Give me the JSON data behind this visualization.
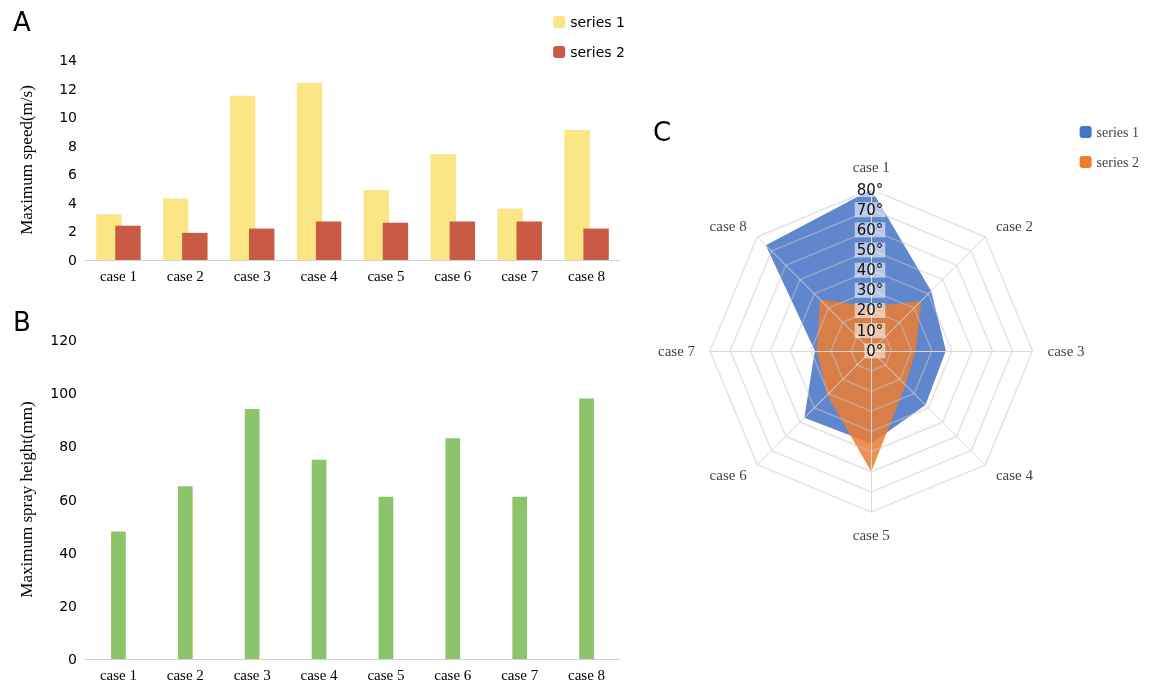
{
  "chart_data": [
    {
      "type": "bar",
      "title": "A",
      "ylabel": "Maximum speed(m/s)",
      "categories": [
        "case 1",
        "case 2",
        "case 3",
        "case 4",
        "case 5",
        "case 6",
        "case 7",
        "case 8"
      ],
      "series": [
        {
          "name": "series 1",
          "color": "#fbe685",
          "values": [
            3.2,
            4.3,
            11.5,
            12.4,
            4.9,
            7.4,
            3.6,
            9.1
          ]
        },
        {
          "name": "series 2",
          "color": "#c95a45",
          "values": [
            2.4,
            1.9,
            2.2,
            2.7,
            2.6,
            2.7,
            2.7,
            2.2
          ]
        }
      ],
      "ylim": [
        0,
        14
      ],
      "yticks": [
        0,
        2,
        4,
        6,
        8,
        10,
        12,
        14
      ],
      "grid": false,
      "legend": "top right"
    },
    {
      "type": "bar",
      "title": "B",
      "ylabel": "Maximum spray height(mm)",
      "categories": [
        "case 1",
        "case 2",
        "case 3",
        "case 4",
        "case 5",
        "case 6",
        "case 7",
        "case 8"
      ],
      "values": [
        48,
        65,
        94,
        75,
        61,
        83,
        61,
        98
      ],
      "color": "#8cc46c",
      "ylim": [
        0,
        120
      ],
      "yticks": [
        0,
        20,
        40,
        60,
        80,
        100,
        120
      ],
      "grid": false
    },
    {
      "type": "radar",
      "title": "C",
      "categories": [
        "case 1",
        "case 2",
        "case 3",
        "case 4",
        "case 5",
        "case 6",
        "case 7",
        "case 8"
      ],
      "series": [
        {
          "name": "series 1",
          "color": "#4472c4",
          "values": [
            80,
            42,
            37,
            38,
            46,
            47,
            28,
            74
          ]
        },
        {
          "name": "series 2",
          "color": "#ed7d31",
          "values": [
            22,
            35,
            22,
            24,
            60,
            31,
            27,
            36
          ]
        }
      ],
      "ylim": [
        0,
        80
      ],
      "yticks": [
        {
          "value": 0,
          "label": "0°"
        },
        {
          "value": 10,
          "label": "10°"
        },
        {
          "value": 20,
          "label": "20°"
        },
        {
          "value": 30,
          "label": "30°"
        },
        {
          "value": 40,
          "label": "40°"
        },
        {
          "value": 50,
          "label": "50°"
        },
        {
          "value": 60,
          "label": "60°"
        },
        {
          "value": 70,
          "label": "70°"
        },
        {
          "value": 80,
          "label": "80°"
        }
      ],
      "grid": true,
      "legend": "top right"
    }
  ]
}
